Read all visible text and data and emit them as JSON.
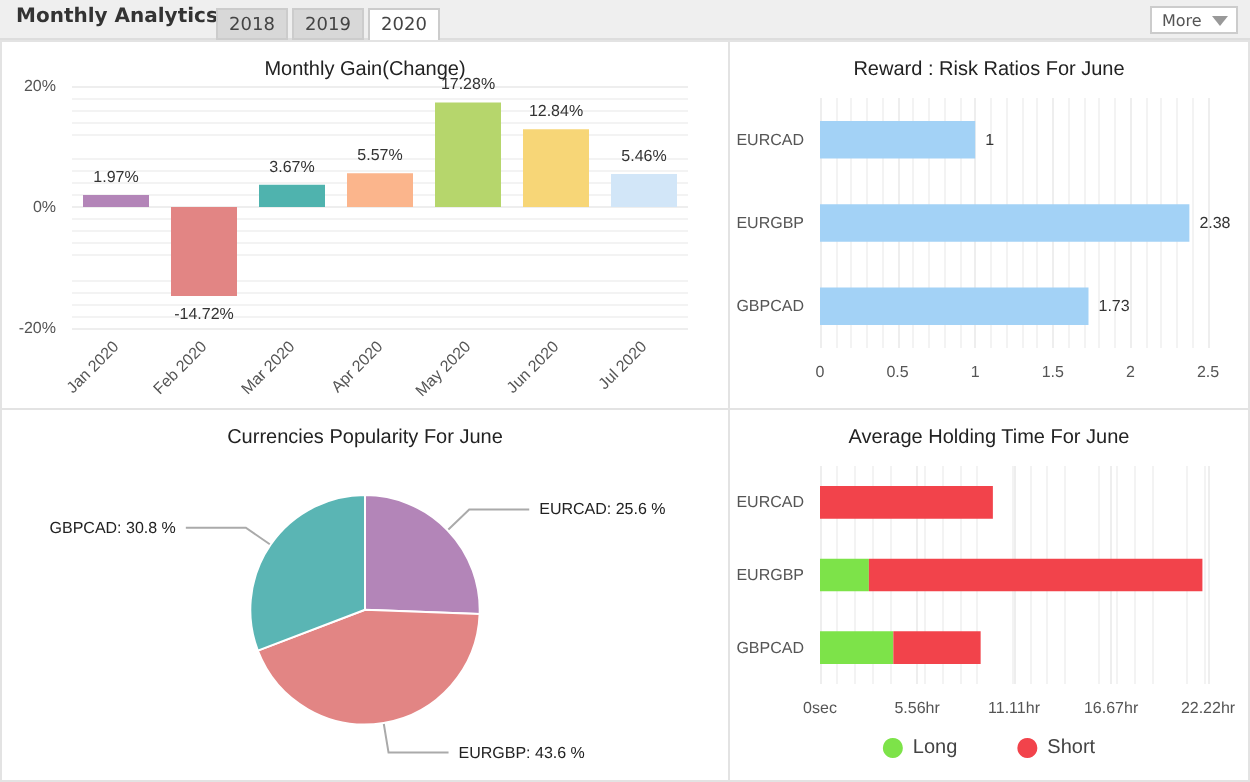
{
  "chart_data": [
    {
      "type": "other",
      "title": "Monthly Analytics",
      "annotations": [
        "2018",
        "2019",
        "2020",
        "More"
      ]
    },
    {
      "type": "bar",
      "title": "Monthly Gain(Change)",
      "categories": [
        "Jan 2020",
        "Feb 2020",
        "Mar 2020",
        "Apr 2020",
        "May 2020",
        "Jun 2020",
        "Jul 2020"
      ],
      "values": [
        1.97,
        -14.72,
        3.67,
        5.57,
        17.28,
        12.84,
        5.46
      ],
      "colors": [
        "#b385b8",
        "#e28584",
        "#4fb3ae",
        "#fbb58c",
        "#b6d66c",
        "#f7d677",
        "#d2e6f8"
      ],
      "value_labels": [
        "1.97%",
        "-14.72%",
        "3.67%",
        "5.57%",
        "17.28%",
        "12.84%",
        "5.46%"
      ],
      "ylim": [
        -20,
        20
      ],
      "yticks": [
        {
          "value": -20,
          "label": "-20%"
        },
        {
          "value": 0,
          "label": "0%"
        },
        {
          "value": 20,
          "label": "20%"
        }
      ],
      "grid": "y"
    },
    {
      "type": "bar",
      "title": "Reward : Risk Ratios For June",
      "orientation": "horizontal",
      "categories": [
        "EURCAD",
        "EURGBP",
        "GBPCAD"
      ],
      "values": [
        1,
        2.38,
        1.73
      ],
      "color": "#a3d2f6",
      "data_labels": true,
      "xlim": [
        0,
        2.5
      ],
      "xticks": [
        0,
        0.5,
        1,
        1.5,
        2,
        2.5
      ],
      "grid": "x"
    },
    {
      "type": "pie",
      "title": "Currencies Popularity For June",
      "categories": [
        "EURCAD: 25.6 %",
        "EURGBP: 43.6 %",
        "GBPCAD: 30.8 %"
      ],
      "values": [
        25.6,
        43.6,
        30.8
      ],
      "colors": [
        "#b385b8",
        "#e28584",
        "#5ab5b4"
      ]
    },
    {
      "type": "bar",
      "title": "Average Holding Time For June",
      "orientation": "horizontal",
      "stacked": true,
      "categories": [
        "EURCAD",
        "EURGBP",
        "GBPCAD"
      ],
      "series": [
        {
          "name": "Long",
          "color": "#7de349",
          "values": [
            0,
            2.8,
            4.2
          ]
        },
        {
          "name": "Short",
          "color": "#f2434b",
          "values": [
            9.9,
            19.1,
            5
          ]
        }
      ],
      "xlim": [
        0,
        22.22
      ],
      "xticks": [
        {
          "value": 0,
          "label": "0sec"
        },
        {
          "value": 5.56,
          "label": "5.56hr"
        },
        {
          "value": 11.11,
          "label": "11.11hr"
        },
        {
          "value": 16.67,
          "label": "16.67hr"
        },
        {
          "value": 22.22,
          "label": "22.22hr"
        }
      ],
      "grid": "x",
      "legend": "bottom"
    }
  ]
}
